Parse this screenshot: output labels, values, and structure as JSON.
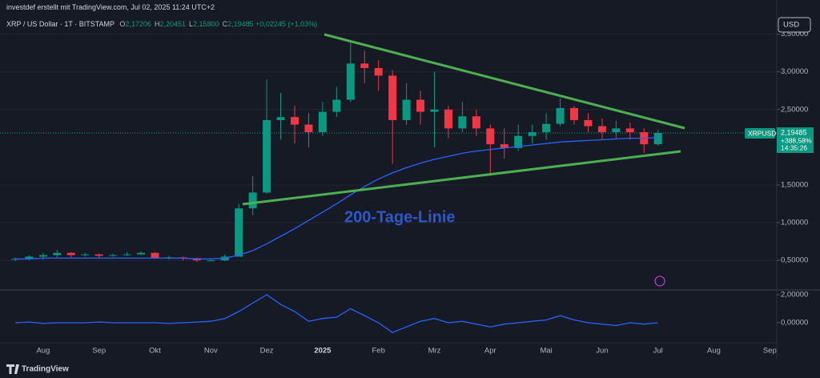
{
  "header": {
    "author_line": "investdef erstellt mit TradingView.com, Jul 02, 2025 11:24 UTC+2",
    "currency": "USD",
    "brand": "TradingView"
  },
  "legend": {
    "symbol": "XRP / US Dollar · 1T · BITSTAMP",
    "ohlc": [
      {
        "key": "O",
        "value": "2,17206"
      },
      {
        "key": "H",
        "value": "2,20451"
      },
      {
        "key": "L",
        "value": "2,15800"
      },
      {
        "key": "C",
        "value": "2,19485"
      }
    ],
    "change": "+0,02245 (+1,03%)"
  },
  "price_tag": {
    "symbol": "XRPUSD",
    "price": "2,19485",
    "change": "+388,58%",
    "countdown": "14:35:26"
  },
  "annotation": "200-Tage-Linie",
  "chart_data": [
    {
      "type": "candlestick",
      "categories": [
        null,
        null,
        "Aug",
        null,
        null,
        null,
        "Sep",
        null,
        null,
        null,
        "Okt",
        null,
        null,
        null,
        "Nov",
        null,
        null,
        null,
        "Dez",
        null,
        null,
        null,
        "2025",
        null,
        null,
        null,
        "Feb",
        null,
        null,
        null,
        "Mrz",
        null,
        null,
        null,
        "Apr",
        null,
        null,
        null,
        "Mai",
        null,
        null,
        null,
        "Jun",
        null,
        null,
        null,
        "Jul",
        null,
        null,
        null,
        "Aug",
        null,
        null,
        null,
        "Sep"
      ],
      "open": [
        0.51,
        0.52,
        0.55,
        0.57,
        0.6,
        0.57,
        0.58,
        0.56,
        0.57,
        0.58,
        0.6,
        0.53,
        0.54,
        0.53,
        0.5,
        0.5,
        0.55,
        1.19,
        1.4,
        2.36,
        2.4,
        2.3,
        2.2,
        2.47,
        2.63,
        3.11,
        3.05,
        2.95,
        2.36,
        2.63,
        2.47,
        2.5,
        2.25,
        2.41,
        2.25,
        2.04,
        1.99,
        2.15,
        2.2,
        2.31,
        2.52,
        2.36,
        2.28,
        2.2,
        2.25,
        2.2,
        2.04,
        null,
        null,
        null,
        null,
        null,
        null,
        null,
        null
      ],
      "high": [
        0.54,
        0.57,
        0.6,
        0.64,
        0.61,
        0.6,
        0.59,
        0.59,
        0.61,
        0.62,
        0.61,
        0.56,
        0.55,
        0.54,
        0.52,
        0.58,
        1.25,
        1.62,
        2.9,
        2.72,
        2.55,
        2.45,
        2.6,
        2.8,
        3.4,
        3.28,
        3.15,
        3.02,
        2.85,
        2.75,
        3.0,
        2.55,
        2.6,
        2.5,
        2.3,
        2.25,
        2.3,
        2.3,
        2.45,
        2.65,
        2.55,
        2.45,
        2.38,
        2.35,
        2.33,
        2.25,
        2.23,
        null,
        null,
        null,
        null,
        null,
        null,
        null,
        null
      ],
      "low": [
        0.49,
        0.5,
        0.51,
        0.54,
        0.54,
        0.55,
        0.53,
        0.55,
        0.56,
        0.57,
        0.52,
        0.51,
        0.5,
        0.48,
        0.49,
        0.49,
        0.55,
        1.1,
        1.38,
        2.1,
        2.05,
        2.0,
        2.15,
        2.4,
        2.6,
        2.85,
        2.75,
        1.78,
        2.3,
        2.3,
        2.0,
        2.12,
        2.2,
        2.15,
        1.62,
        1.85,
        1.95,
        2.05,
        2.1,
        2.28,
        2.3,
        2.2,
        2.1,
        2.12,
        2.1,
        1.92,
        2.02,
        null,
        null,
        null,
        null,
        null,
        null,
        null,
        null
      ],
      "close": [
        0.52,
        0.55,
        0.57,
        0.6,
        0.57,
        0.58,
        0.56,
        0.57,
        0.58,
        0.6,
        0.53,
        0.54,
        0.53,
        0.5,
        0.5,
        0.55,
        1.19,
        1.4,
        2.36,
        2.4,
        2.3,
        2.2,
        2.47,
        2.63,
        3.11,
        3.05,
        2.95,
        2.36,
        2.63,
        2.47,
        2.5,
        2.25,
        2.41,
        2.25,
        2.04,
        1.99,
        2.15,
        2.2,
        2.31,
        2.52,
        2.36,
        2.28,
        2.2,
        2.25,
        2.2,
        2.04,
        2.19,
        null,
        null,
        null,
        null,
        null,
        null,
        null,
        null
      ],
      "up_color": "#089981",
      "down_color": "#f23645",
      "ma": {
        "color": "#2962ff",
        "values": [
          0.52,
          0.52,
          0.53,
          0.53,
          0.53,
          0.53,
          0.53,
          0.53,
          0.53,
          0.53,
          0.53,
          0.53,
          0.53,
          0.52,
          0.52,
          0.53,
          0.57,
          0.63,
          0.72,
          0.82,
          0.92,
          1.03,
          1.14,
          1.25,
          1.37,
          1.48,
          1.58,
          1.66,
          1.73,
          1.79,
          1.84,
          1.88,
          1.92,
          1.95,
          1.97,
          1.99,
          2.01,
          2.03,
          2.05,
          2.07,
          2.08,
          2.09,
          2.1,
          2.11,
          2.12,
          2.12,
          2.13,
          null,
          null,
          null,
          null,
          null,
          null,
          null,
          null
        ]
      },
      "ylim": [
        0.13,
        3.74
      ],
      "yticks": [
        {
          "value": 0.5,
          "label": "0,50000"
        },
        {
          "value": 1,
          "label": "1,00000"
        },
        {
          "value": 1.5,
          "label": "1,50000"
        },
        {
          "value": 2.5,
          "label": "2,50000"
        },
        {
          "value": 3,
          "label": "3,00000"
        },
        {
          "value": 3.5,
          "label": "3,50000"
        }
      ],
      "grid": true
    },
    {
      "type": "line",
      "color": "#2962ff",
      "values": [
        0.0,
        0.05,
        -0.05,
        0.0,
        0.0,
        0.0,
        0.05,
        0.0,
        0.0,
        0.0,
        0.0,
        -0.05,
        0.0,
        0.05,
        0.1,
        0.3,
        0.8,
        1.4,
        2.0,
        1.3,
        0.8,
        0.1,
        0.3,
        0.4,
        1.0,
        0.5,
        0.0,
        -0.7,
        -0.3,
        0.1,
        0.3,
        0.0,
        0.1,
        -0.1,
        -0.3,
        -0.1,
        0.0,
        0.1,
        0.2,
        0.5,
        0.2,
        0.0,
        -0.1,
        -0.2,
        0.0,
        -0.1,
        0.0,
        null,
        null,
        null,
        null,
        null,
        null,
        null,
        null
      ],
      "ylim": [
        -1.43,
        2.34
      ],
      "yticks": [
        {
          "value": 0,
          "label": "0,00000"
        },
        {
          "value": 2,
          "label": "2,00000"
        }
      ]
    }
  ]
}
